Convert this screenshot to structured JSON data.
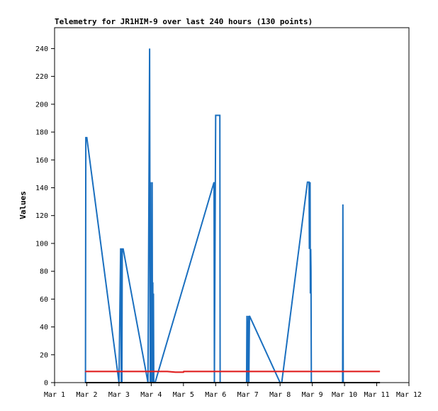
{
  "chart_data": {
    "type": "line",
    "title": "Telemetry for JR1HIM-9 over last 240 hours (130 points)",
    "xlabel": "",
    "ylabel": "Values",
    "x_ticks": [
      "Mar 1",
      "Mar 2",
      "Mar 3",
      "Mar 4",
      "Mar 5",
      "Mar 6",
      "Mar 7",
      "Mar 8",
      "Mar 9",
      "Mar 10",
      "Mar 11",
      "Mar 12"
    ],
    "xlim_days": [
      0,
      11
    ],
    "ylim": [
      0,
      255
    ],
    "y_ticks": [
      0,
      20,
      40,
      60,
      80,
      100,
      120,
      140,
      160,
      180,
      200,
      220,
      240
    ],
    "grid": false,
    "legend": "none",
    "series": [
      {
        "color": "#1a6fbf",
        "x_days": [
          0.96,
          0.97,
          1.0,
          2.0,
          2.05,
          2.06,
          2.07,
          2.08,
          2.09,
          2.1,
          2.11,
          2.12,
          2.13,
          2.9,
          2.95,
          2.97,
          2.98,
          2.99,
          3.0,
          3.02,
          3.03,
          3.04,
          3.05,
          3.06,
          3.07,
          3.08,
          3.09,
          3.1,
          3.12,
          4.95,
          4.96,
          4.97,
          4.98,
          5.0,
          5.05,
          5.06,
          5.07,
          5.08,
          5.09,
          5.1,
          5.12,
          5.13,
          5.14,
          5.96,
          5.97,
          5.98,
          6.02,
          6.03,
          6.05,
          7.0,
          7.05,
          7.85,
          7.9,
          7.91,
          7.92,
          7.93,
          7.94,
          7.95,
          7.96,
          7.97,
          8.0,
          8.01,
          8.02,
          8.03,
          8.94,
          8.95,
          8.96,
          8.97,
          8.98
        ],
        "values": [
          0,
          176,
          176,
          0,
          96,
          96,
          0,
          96,
          0,
          96,
          96,
          96,
          96,
          0,
          240,
          0,
          144,
          0,
          80,
          0,
          144,
          0,
          72,
          0,
          64,
          0,
          0,
          0,
          0,
          144,
          0,
          48,
          96,
          192,
          192,
          192,
          192,
          192,
          192,
          192,
          192,
          192,
          0,
          0,
          48,
          0,
          48,
          0,
          48,
          0,
          0,
          144,
          144,
          96,
          128,
          144,
          64,
          96,
          80,
          0,
          0,
          0,
          0,
          0,
          0,
          128,
          0,
          0,
          0
        ]
      },
      {
        "color": "#e02020",
        "x_days": [
          0.95,
          1.0,
          1.5,
          2.0,
          2.5,
          2.96,
          3.0,
          3.3,
          3.5,
          3.75,
          4.0,
          4.01,
          4.3,
          4.6,
          5.0,
          5.5,
          6.0,
          6.5,
          7.0,
          7.5,
          8.0,
          8.5,
          9.0,
          9.5,
          10.1
        ],
        "values": [
          8,
          8,
          8,
          8,
          8,
          8,
          8,
          8,
          8,
          7.5,
          7.5,
          8,
          8,
          8,
          8,
          8,
          8,
          8,
          8,
          8,
          8,
          8,
          8,
          8,
          8
        ]
      },
      {
        "color": "#000000",
        "x_days": [
          0.95,
          10.1
        ],
        "values": [
          0,
          0
        ]
      }
    ]
  }
}
